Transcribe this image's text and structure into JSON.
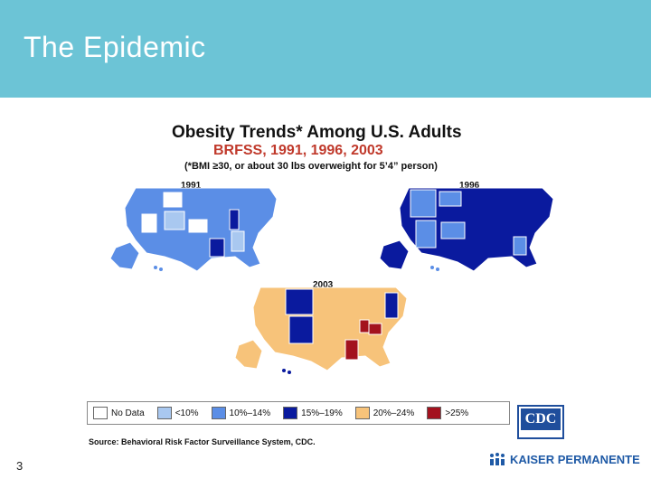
{
  "slide": {
    "title": "The Epidemic",
    "page_number": "3"
  },
  "map_header": {
    "title": "Obesity Trends* Among U.S. Adults",
    "subtitle": "BRFSS, 1991, 1996, 2003",
    "note": "(*BMI ≥30, or about 30 lbs overweight for 5’4” person)"
  },
  "maps": [
    {
      "year": "1991",
      "dominant_category": "10%–14%"
    },
    {
      "year": "1996",
      "dominant_category": "15%–19%"
    },
    {
      "year": "2003",
      "dominant_category": "20%–24%"
    }
  ],
  "legend": {
    "items": [
      {
        "label": "No Data",
        "color": "#ffffff"
      },
      {
        "label": "<10%",
        "color": "#a9c8f0"
      },
      {
        "label": "10%–14%",
        "color": "#5b8ee6"
      },
      {
        "label": "15%–19%",
        "color": "#0a1a9e"
      },
      {
        "label": "20%–24%",
        "color": "#f7c37a"
      },
      {
        "label": ">25%",
        "color": "#a3121e"
      }
    ]
  },
  "source": "Source: Behavioral Risk Factor Surveillance System, CDC.",
  "logos": {
    "cdc": "CDC",
    "kaiser": "KAISER PERMANENTE"
  },
  "colors": {
    "header": "#6cc4d6"
  }
}
